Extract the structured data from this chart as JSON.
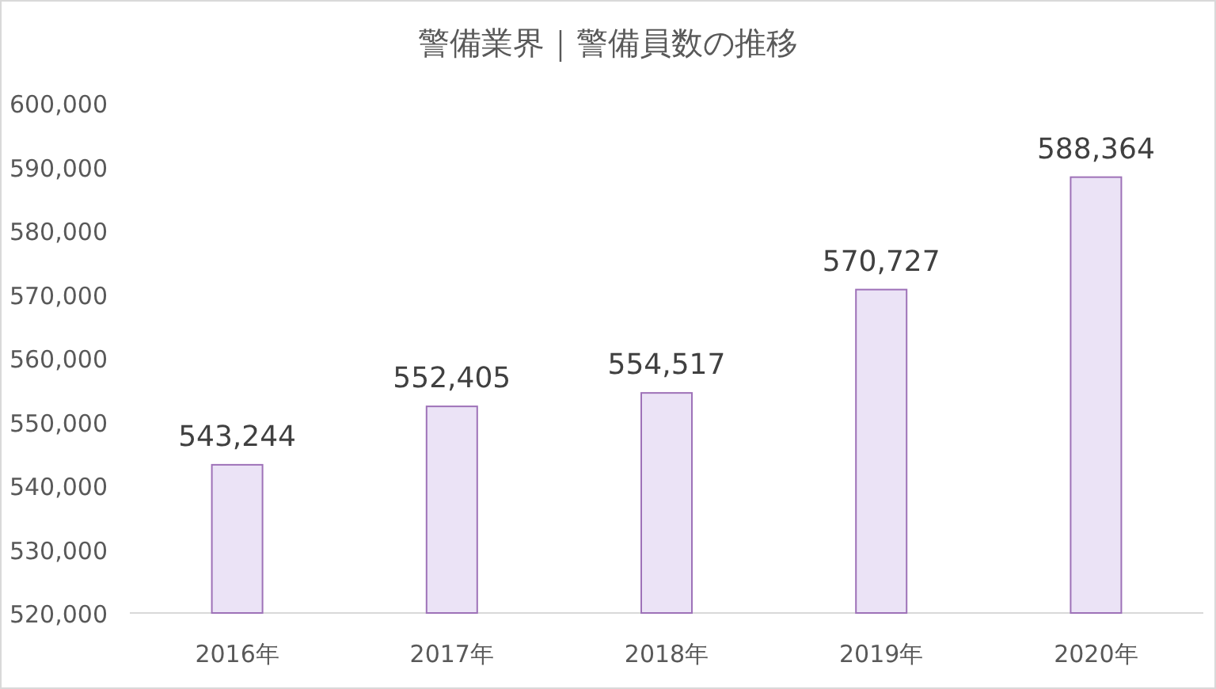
{
  "chart_data": {
    "type": "bar",
    "title": "警備業界｜警備員数の推移",
    "categories": [
      "2016年",
      "2017年",
      "2018年",
      "2019年",
      "2020年"
    ],
    "values": [
      543244,
      552405,
      554517,
      570727,
      588364
    ],
    "value_labels": [
      "543,244",
      "552,405",
      "554,517",
      "570,727",
      "588,364"
    ],
    "color": "#ebe3f6",
    "ylim": [
      520000,
      600000
    ],
    "yticks": [
      {
        "value": 520000,
        "label": "520,000"
      },
      {
        "value": 530000,
        "label": "530,000"
      },
      {
        "value": 540000,
        "label": "540,000"
      },
      {
        "value": 550000,
        "label": "550,000"
      },
      {
        "value": 560000,
        "label": "560,000"
      },
      {
        "value": 570000,
        "label": "570,000"
      },
      {
        "value": 580000,
        "label": "580,000"
      },
      {
        "value": 590000,
        "label": "590,000"
      },
      {
        "value": 600000,
        "label": "600,000"
      }
    ],
    "ylabel": null
  }
}
